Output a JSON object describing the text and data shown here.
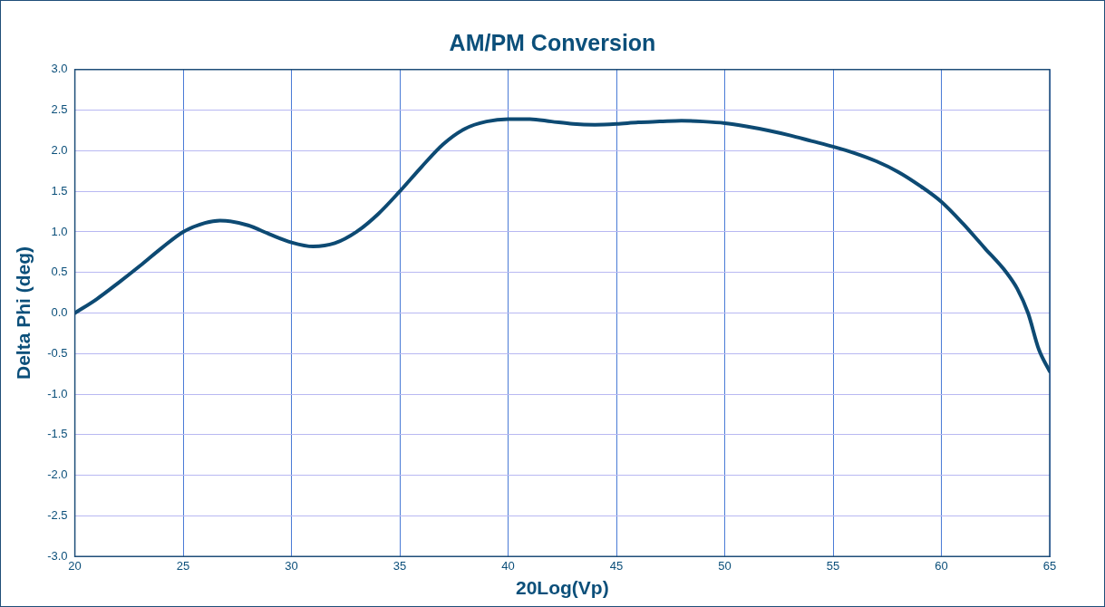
{
  "chart_data": {
    "type": "line",
    "title": "AM/PM Conversion",
    "xlabel": "20Log(Vp)",
    "ylabel": "Delta Phi (deg)",
    "x": [
      20,
      21,
      22,
      23,
      24,
      25,
      26,
      26.7,
      28,
      29,
      30,
      31,
      32,
      33,
      34,
      35,
      36,
      37,
      38,
      39,
      40,
      41,
      42,
      43,
      44,
      45,
      46,
      47,
      48,
      49,
      50,
      51,
      52,
      53,
      54,
      55,
      56,
      57,
      58,
      59,
      60,
      61,
      62,
      63,
      63.5,
      64,
      64.5,
      65
    ],
    "series": [
      {
        "color": "#0d4a73",
        "values": [
          0,
          0.17,
          0.37,
          0.58,
          0.8,
          1.0,
          1.11,
          1.14,
          1.08,
          0.97,
          0.87,
          0.82,
          0.86,
          1.0,
          1.22,
          1.5,
          1.8,
          2.08,
          2.27,
          2.36,
          2.39,
          2.39,
          2.36,
          2.33,
          2.32,
          2.33,
          2.35,
          2.36,
          2.37,
          2.36,
          2.34,
          2.3,
          2.25,
          2.19,
          2.12,
          2.05,
          1.97,
          1.87,
          1.74,
          1.57,
          1.37,
          1.1,
          0.8,
          0.5,
          0.3,
          0.0,
          -0.45,
          -0.72
        ]
      }
    ],
    "xlim": [
      20,
      65
    ],
    "xticks": [
      20,
      25,
      30,
      35,
      40,
      45,
      50,
      55,
      60,
      65
    ],
    "ylim": [
      -3,
      3
    ],
    "yticks": [
      {
        "value": -3,
        "label": "-3.0"
      },
      {
        "value": -2.5,
        "label": "-2.5"
      },
      {
        "value": -2,
        "label": "-2.0"
      },
      {
        "value": -1.5,
        "label": "-1.5"
      },
      {
        "value": -1,
        "label": "-1.0"
      },
      {
        "value": -0.5,
        "label": "-0.5"
      },
      {
        "value": 0,
        "label": "0.0"
      },
      {
        "value": 0.5,
        "label": "0.5"
      },
      {
        "value": 1,
        "label": "1.0"
      },
      {
        "value": 1.5,
        "label": "1.5"
      },
      {
        "value": 2,
        "label": "2.0"
      },
      {
        "value": 2.5,
        "label": "2.5"
      },
      {
        "value": 3,
        "label": "3.0"
      }
    ],
    "grid": true,
    "legend": false,
    "marker": "none",
    "line_style": "solid"
  }
}
